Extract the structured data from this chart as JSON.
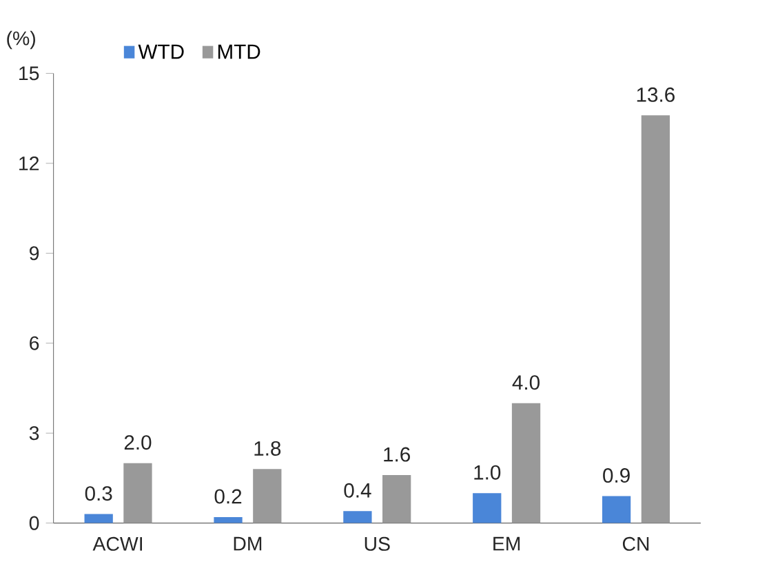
{
  "chart_data": {
    "type": "bar",
    "ylabel": "(%)",
    "categories": [
      "ACWI",
      "DM",
      "US",
      "EM",
      "CN"
    ],
    "series": [
      {
        "name": "WTD",
        "color": "#4a86d8",
        "values": [
          0.3,
          0.2,
          0.4,
          1.0,
          0.9
        ],
        "value_labels": [
          "0.3",
          "0.2",
          "0.4",
          "1.0",
          "0.9"
        ]
      },
      {
        "name": "MTD",
        "color": "#999999",
        "values": [
          2.0,
          1.8,
          1.6,
          4.0,
          13.6
        ],
        "value_labels": [
          "2.0",
          "1.8",
          "1.6",
          "4.0",
          "13.6"
        ]
      }
    ],
    "ylim": [
      0,
      15
    ],
    "yticks": [
      0,
      3,
      6,
      9,
      12,
      15
    ],
    "legend": "top left",
    "grid": false
  }
}
